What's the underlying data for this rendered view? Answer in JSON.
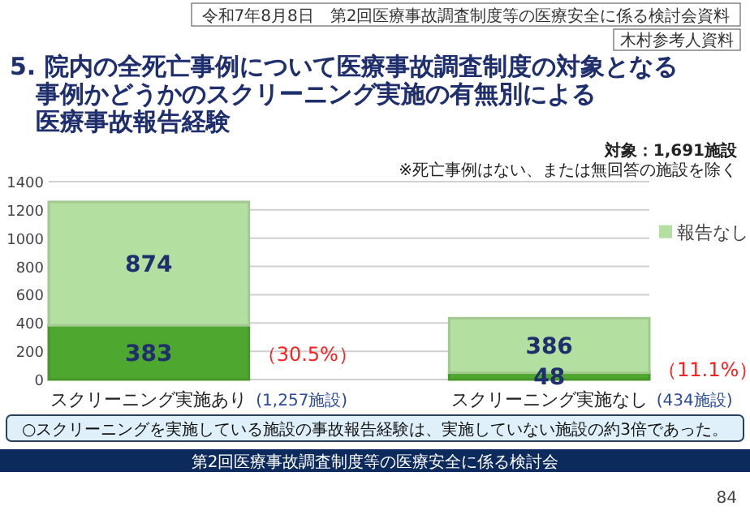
{
  "chart_data": {
    "type": "bar",
    "title": "5. 院内の全死亡事例について医療事故調査制度の対象となる事例かどうかのスクリーニング実施の有無別による医療事故報告経験",
    "categories": [
      "スクリーニング実施あり",
      "スクリーニング実施なし"
    ],
    "series": [
      {
        "color": "#4ea72e",
        "values": [
          383,
          48
        ]
      },
      {
        "name": "報告なし",
        "color": "#b3e0a0",
        "values": [
          874,
          386
        ]
      }
    ],
    "stacked": true,
    "data_labels": true,
    "legend": "right",
    "grid": "y",
    "ylim": [
      0,
      1400
    ],
    "yticks": [
      0,
      200,
      400,
      600,
      800,
      1000,
      1200,
      1400
    ],
    "annotations": [
      "令和7年8月8日　第2回医療事故調査制度等の医療安全に係る検討会資料",
      "木村参考人資料",
      "対象：1,691施設",
      "※死亡事例はない、または無回答の施設を除く",
      "（30.5%）",
      "(1,257施設)",
      "（11.1%）",
      "(434施設)",
      "○スクリーニングを実施している施設の事故報告経験は、実施していない施設の約3倍であった。",
      "第2回医療事故調査制度等の医療安全に係る検討会",
      "84"
    ]
  }
}
